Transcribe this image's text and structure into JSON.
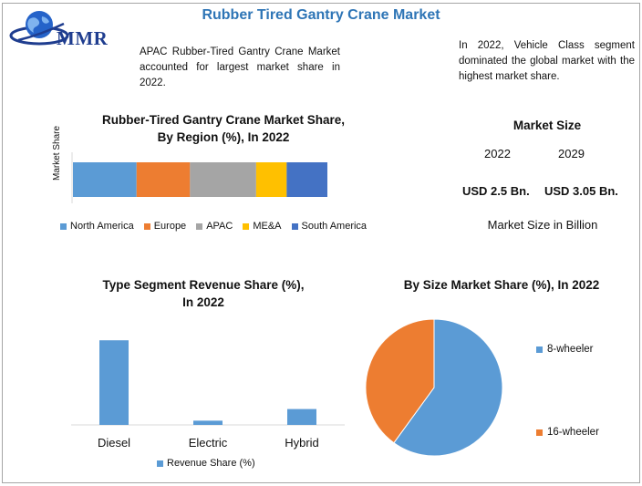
{
  "header": {
    "title": "Rubber Tired Gantry Crane Market",
    "logo_text": "MMR"
  },
  "notes": {
    "apac": "APAC Rubber-Tired Gantry Crane Market accounted for largest market share in 2022.",
    "vehicle": "In 2022, Vehicle Class segment dominated the global market with the highest market share."
  },
  "market_size": {
    "title": "Market Size",
    "year_start": "2022",
    "year_end": "2029",
    "value_start": "USD 2.5 Bn.",
    "value_end": "USD 3.05 Bn.",
    "caption": "Market Size in Billion"
  },
  "chart_data": [
    {
      "type": "bar",
      "orientation": "horizontal-stacked",
      "title": "Rubber-Tired Gantry Crane Market Share, By Region (%), In 2022",
      "ylabel": "Market Share",
      "categories": [
        "Market Share"
      ],
      "series": [
        {
          "name": "North America",
          "values": [
            25
          ],
          "color": "#5b9bd5"
        },
        {
          "name": "Europe",
          "values": [
            21
          ],
          "color": "#ed7d31"
        },
        {
          "name": "APAC",
          "values": [
            26
          ],
          "color": "#a5a5a5"
        },
        {
          "name": "ME&A",
          "values": [
            12
          ],
          "color": "#ffc000"
        },
        {
          "name": "South America",
          "values": [
            16
          ],
          "color": "#4472c4"
        }
      ],
      "legend": "bottom"
    },
    {
      "type": "bar",
      "title": "Type Segment Revenue Share (%), In 2022",
      "categories": [
        "Diesel",
        "Electric",
        "Hybrid"
      ],
      "series": [
        {
          "name": "Revenue Share (%)",
          "values": [
            80,
            4,
            15
          ],
          "color": "#5b9bd5"
        }
      ],
      "ylim": [
        0,
        100
      ],
      "legend": "bottom"
    },
    {
      "type": "pie",
      "title": "By Size Market Share (%), In 2022",
      "labels": [
        "8-wheeler",
        "16-wheeler"
      ],
      "values": [
        60,
        40
      ],
      "colors": [
        "#5b9bd5",
        "#ed7d31"
      ],
      "legend": "right"
    }
  ]
}
